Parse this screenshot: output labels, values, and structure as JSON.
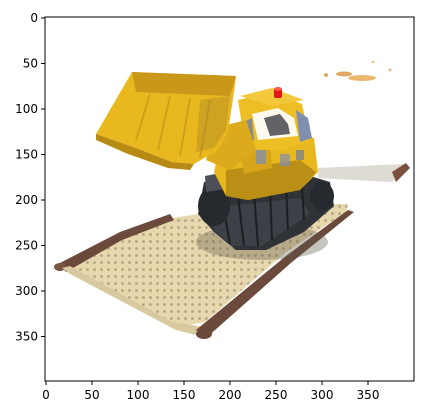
{
  "figure": {
    "subject": "render of yellow toy bulldozer on a tan baseplate",
    "x_axis": {
      "ticks": [
        "0",
        "50",
        "100",
        "150",
        "200",
        "250",
        "300",
        "350"
      ],
      "range": [
        0,
        400
      ]
    },
    "y_axis": {
      "ticks": [
        "0",
        "50",
        "100",
        "150",
        "200",
        "250",
        "300",
        "350"
      ],
      "range": [
        0,
        400
      ],
      "inverted": true
    },
    "colors": {
      "body": "#e9b81e",
      "body_shadow": "#b98f15",
      "tracks": "#2f3236",
      "baseplate": "#e6d7ad",
      "baseplate_edge": "#6b4a3c",
      "beacon": "#e01818",
      "window": "#7f8fb0"
    }
  }
}
